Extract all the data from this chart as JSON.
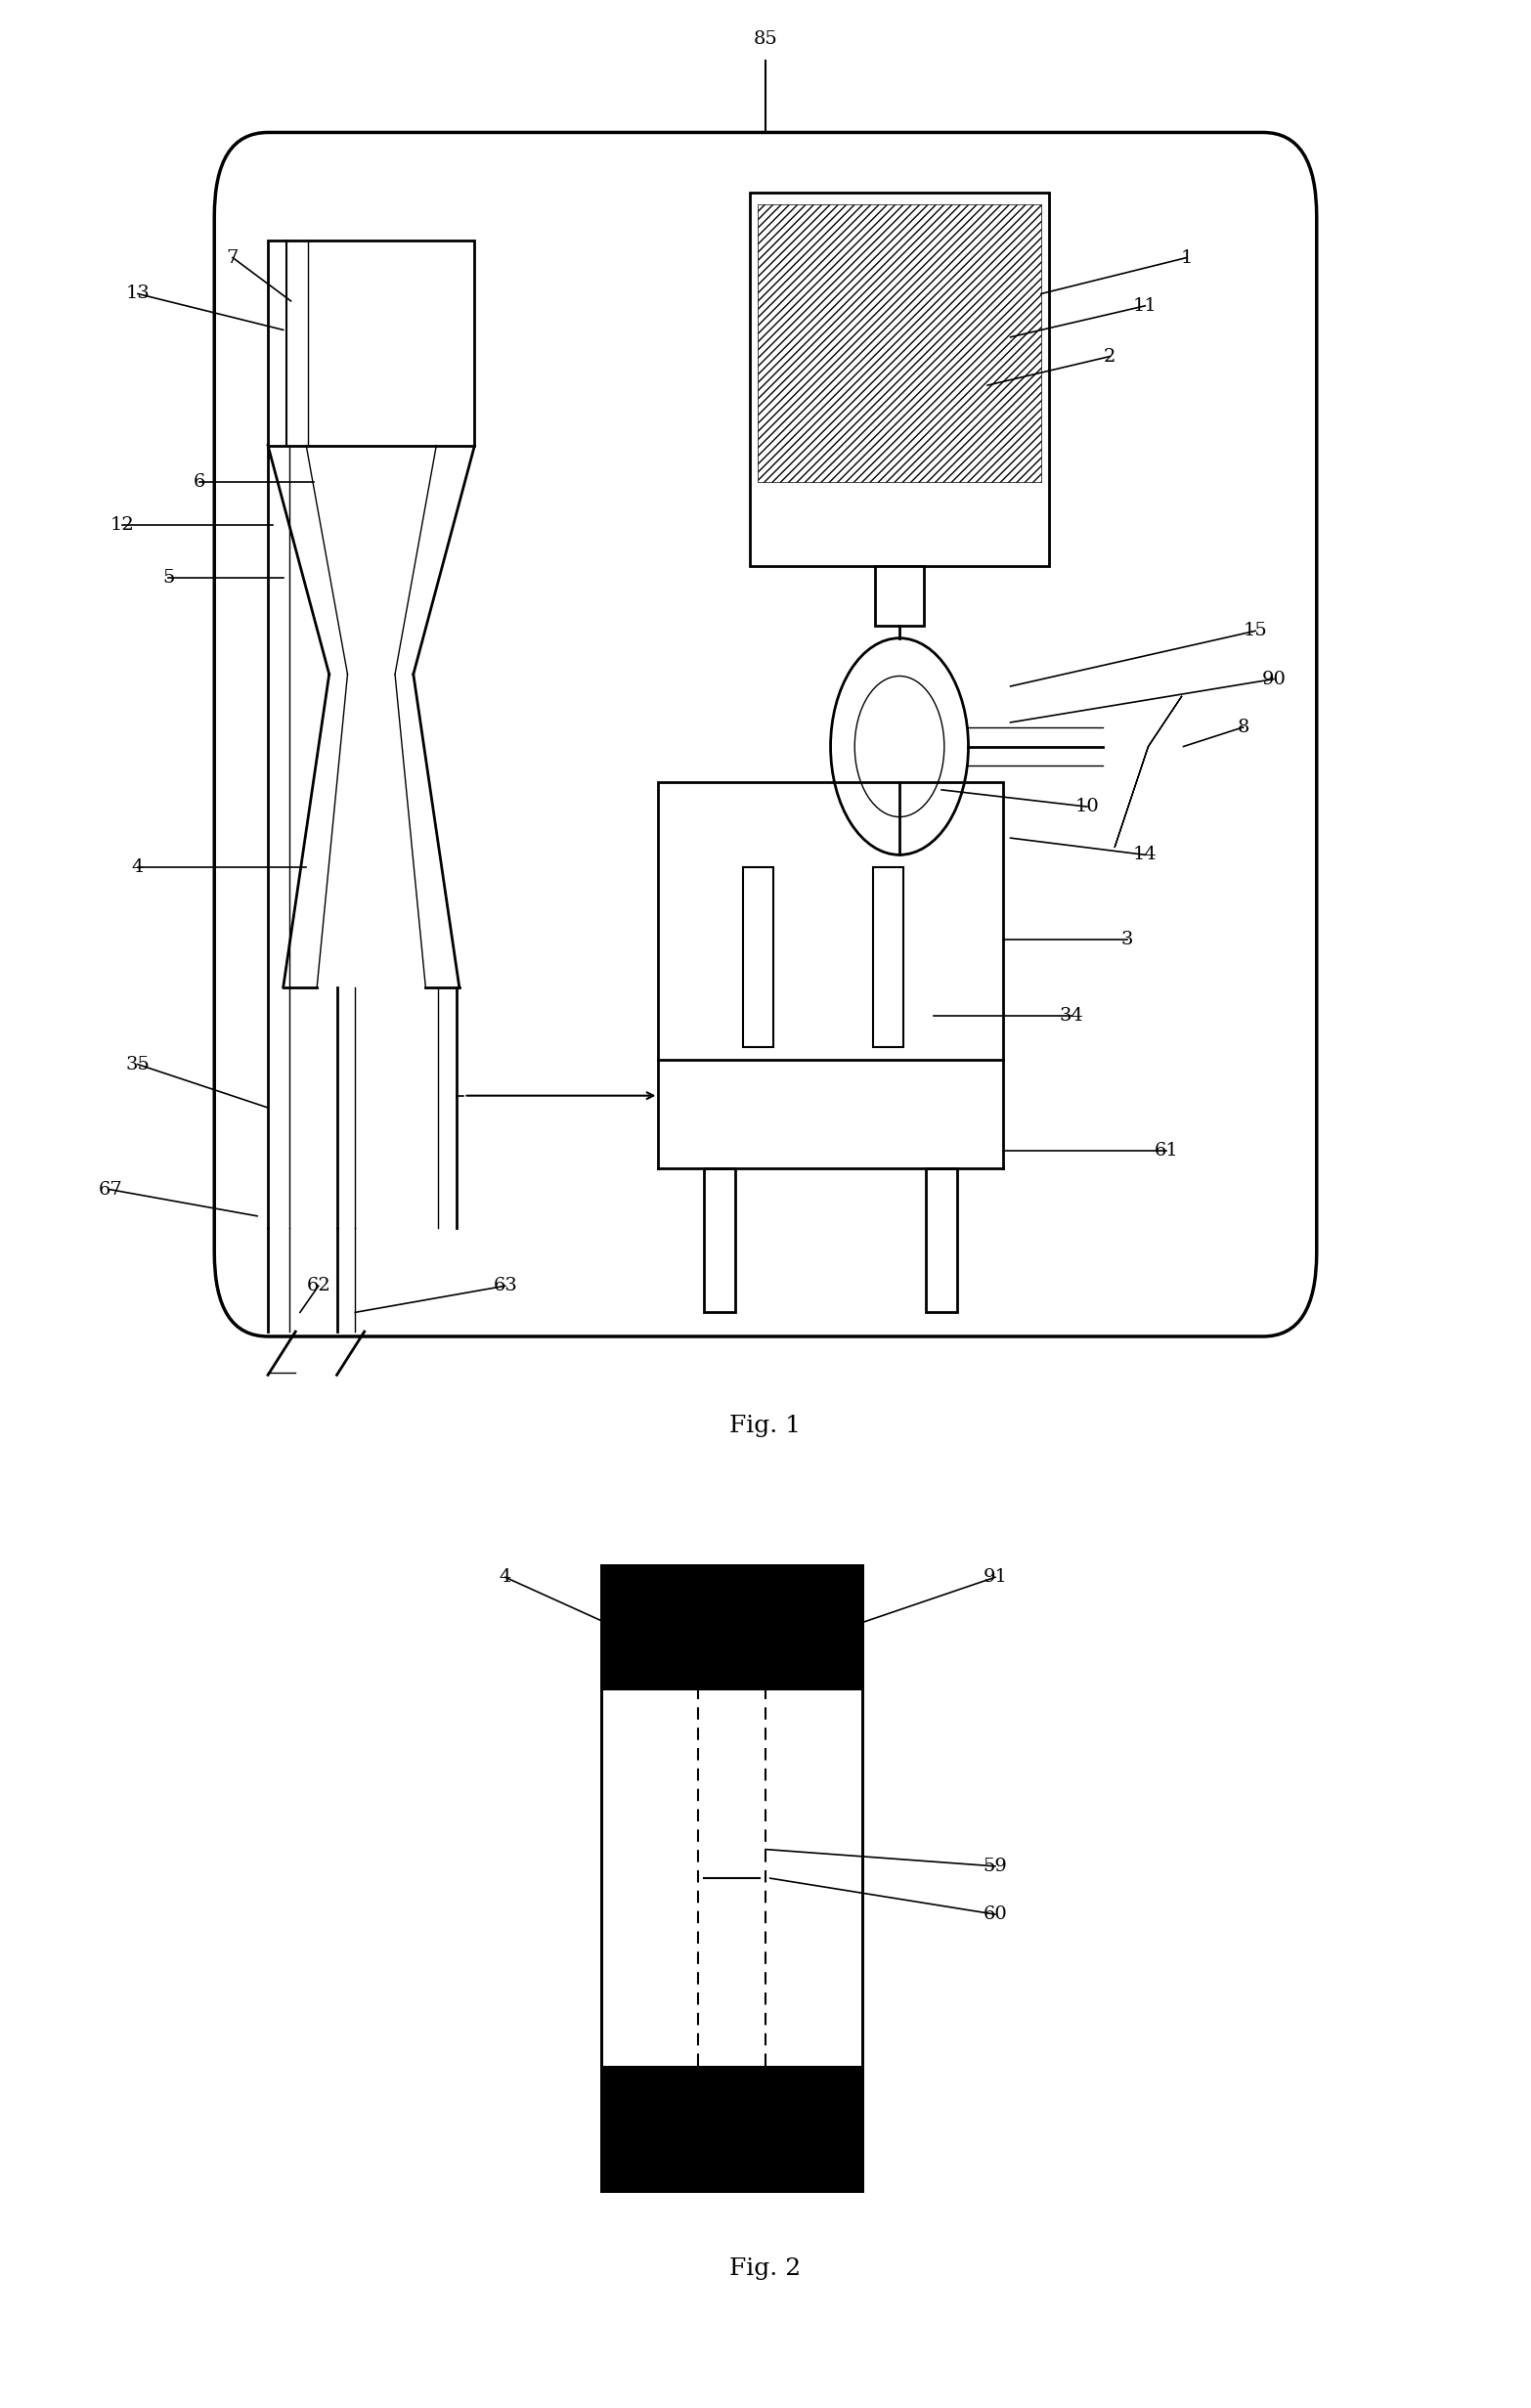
{
  "fig_width": 15.66,
  "fig_height": 24.63,
  "bg_color": "#ffffff",
  "line_color": "#000000",
  "fig1_caption": "Fig. 1",
  "fig2_caption": "Fig. 2"
}
